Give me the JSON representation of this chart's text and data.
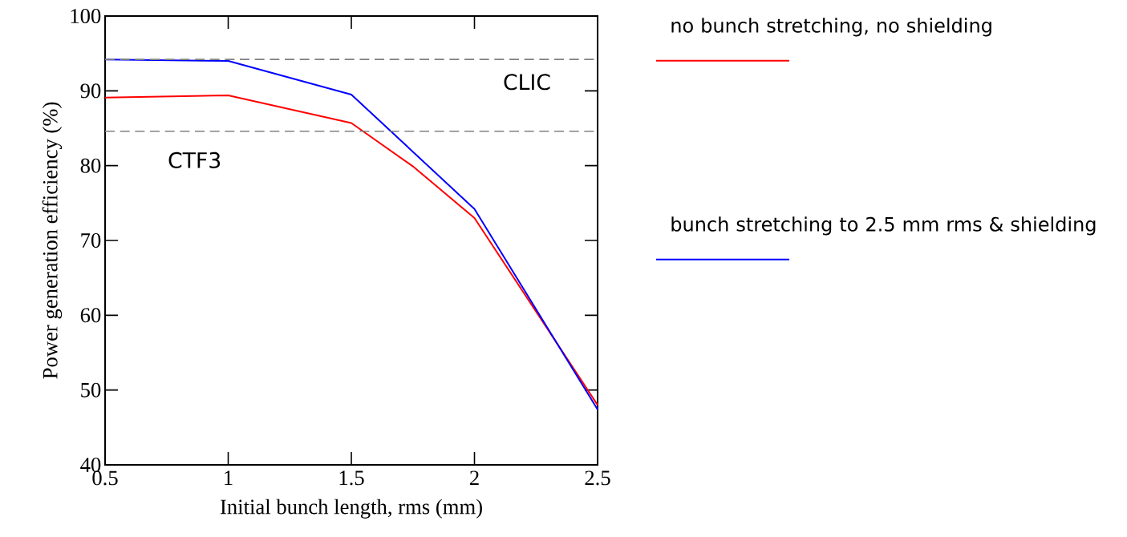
{
  "chart_data": {
    "type": "line",
    "xlabel": "Initial bunch length, rms (mm)",
    "ylabel": "Power generation efficiency (%)",
    "x": [
      0.5,
      1,
      1.5,
      1.75,
      2,
      2.5
    ],
    "series": [
      {
        "name": "no bunch stretching, no shielding",
        "color": "#ff0000",
        "values": [
          89.1,
          89.4,
          85.7,
          79.9,
          73.0,
          48.0
        ]
      },
      {
        "name": "bunch stretching to 2.5 mm rms & shielding",
        "color": "#0000ff",
        "x": [
          0.5,
          1,
          1.5,
          2,
          2.5
        ],
        "values": [
          94.2,
          94.0,
          89.5,
          74.2,
          47.4
        ]
      }
    ],
    "xlim": [
      0.5,
      2.5
    ],
    "xticks": [
      0.5,
      1,
      1.5,
      2,
      2.5
    ],
    "ylim": [
      40,
      100
    ],
    "yticks": [
      40,
      50,
      60,
      70,
      80,
      90,
      100
    ],
    "ref_lines": [
      {
        "axis": "y",
        "value": 94.2,
        "label": "CLIC",
        "color": "#808080",
        "line_style": "dashed"
      },
      {
        "axis": "y",
        "value": 84.6,
        "label": "CTF3",
        "color": "#808080",
        "line_style": "dashed"
      }
    ],
    "legend": "right",
    "grid": false,
    "marker": "none",
    "line_style": "solid"
  }
}
